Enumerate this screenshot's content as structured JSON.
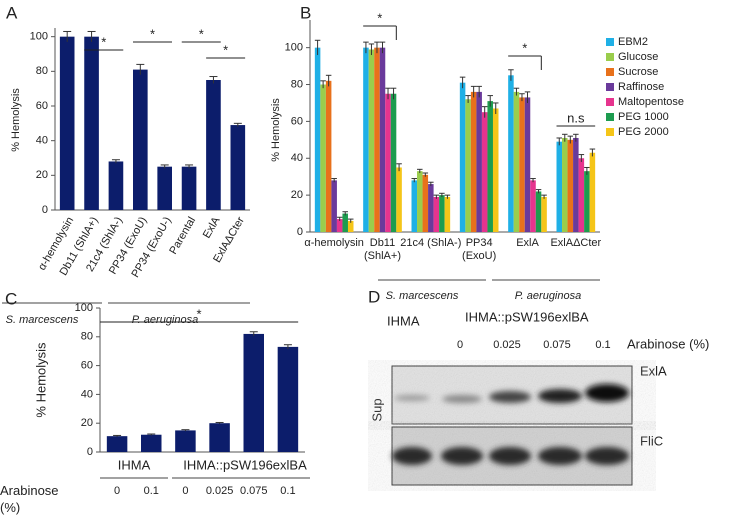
{
  "chart_data": [
    {
      "panel_label": "A",
      "type": "bar",
      "ylabel": "% Hemolysis",
      "categories": [
        "α-hemolysin",
        "Db11 (ShlA+)",
        "21c4 (ShlA-)",
        "PP34 (ExoU)",
        "PP34 (ExoU-)",
        "Parental",
        "ExlA",
        "ExlAΔCter"
      ],
      "values": [
        100,
        100,
        28,
        81,
        25,
        25,
        75,
        49
      ],
      "errors": [
        3,
        3,
        1,
        3,
        1,
        1,
        2,
        1
      ],
      "color": "#0c1d6b",
      "ylim": [
        0,
        105
      ],
      "yticks": [
        0,
        20,
        40,
        60,
        80,
        100
      ],
      "annotations": [
        "*",
        "*",
        "*",
        "*"
      ],
      "groups": [
        "S. marcescens",
        "P. aeruginosa"
      ]
    },
    {
      "panel_label": "B",
      "type": "bar",
      "ylabel": "% Hemolysis",
      "categories": [
        "α-hemolysin",
        "Db11 (ShlA+)",
        "21c4 (ShlA-)",
        "PP34 (ExoU)",
        "ExlA",
        "ExlAΔCter"
      ],
      "series": [
        {
          "name": "EBM2",
          "color": "#1fb0e6",
          "values": [
            100,
            100,
            28,
            81,
            85,
            49
          ],
          "errors": [
            4,
            3,
            1,
            3,
            3,
            2
          ]
        },
        {
          "name": "Glucose",
          "color": "#9acd4c",
          "values": [
            80,
            99,
            33,
            72,
            76,
            51
          ],
          "errors": [
            2,
            3,
            1,
            2,
            2,
            2
          ]
        },
        {
          "name": "Sucrose",
          "color": "#e8711b",
          "values": [
            82,
            100,
            31,
            76,
            73,
            50
          ],
          "errors": [
            3,
            3,
            1,
            3,
            2,
            2
          ]
        },
        {
          "name": "Raffinose",
          "color": "#6a3a9b",
          "values": [
            28,
            100,
            26,
            76,
            73,
            51
          ],
          "errors": [
            1,
            3,
            1,
            3,
            3,
            2
          ]
        },
        {
          "name": "Maltopentose",
          "color": "#e6348e",
          "values": [
            7,
            75,
            19,
            65,
            28,
            40
          ],
          "errors": [
            1,
            3,
            1,
            3,
            1,
            2
          ]
        },
        {
          "name": "PEG 1000",
          "color": "#1d9c4f",
          "values": [
            10,
            75,
            20,
            71,
            22,
            33
          ],
          "errors": [
            1,
            3,
            1,
            3,
            1,
            2
          ]
        },
        {
          "name": "PEG 2000",
          "color": "#f5c518",
          "values": [
            6,
            35,
            19,
            67,
            19,
            43
          ],
          "errors": [
            1,
            2,
            1,
            3,
            1,
            2
          ]
        }
      ],
      "ylim": [
        0,
        115
      ],
      "yticks": [
        0,
        20,
        40,
        60,
        80,
        100
      ],
      "legend": "upper right",
      "annotations": [
        "*",
        "*",
        "n.s"
      ],
      "groups": [
        "S. marcescens",
        "P. aeruginosa"
      ]
    },
    {
      "panel_label": "C",
      "type": "bar",
      "ylabel": "% Hemolysis",
      "categories": [
        "0",
        "0.1",
        "0",
        "0.025",
        "0.075",
        "0.1"
      ],
      "values": [
        11,
        12,
        15,
        20,
        82,
        73
      ],
      "errors": [
        0.5,
        0.5,
        0.5,
        0.5,
        1.5,
        1.5
      ],
      "color": "#0c1d6b",
      "ylim": [
        0,
        100
      ],
      "yticks": [
        0,
        20,
        40,
        60,
        80,
        100
      ],
      "xlabel": "Arabinose (%)",
      "annotations": [
        "*"
      ],
      "groups": [
        "IHMA",
        "IHMA::pSW196exlBA"
      ]
    }
  ],
  "blot": {
    "panel_label": "D",
    "strains": [
      "IHMA",
      "IHMA::pSW196exlBA"
    ],
    "arabinose_label": "Arabinose (%)",
    "lanes": [
      "0",
      "0.025",
      "0.075",
      "0.1"
    ],
    "bands": [
      "ExlA",
      "FliC"
    ],
    "fraction": "Sup"
  }
}
